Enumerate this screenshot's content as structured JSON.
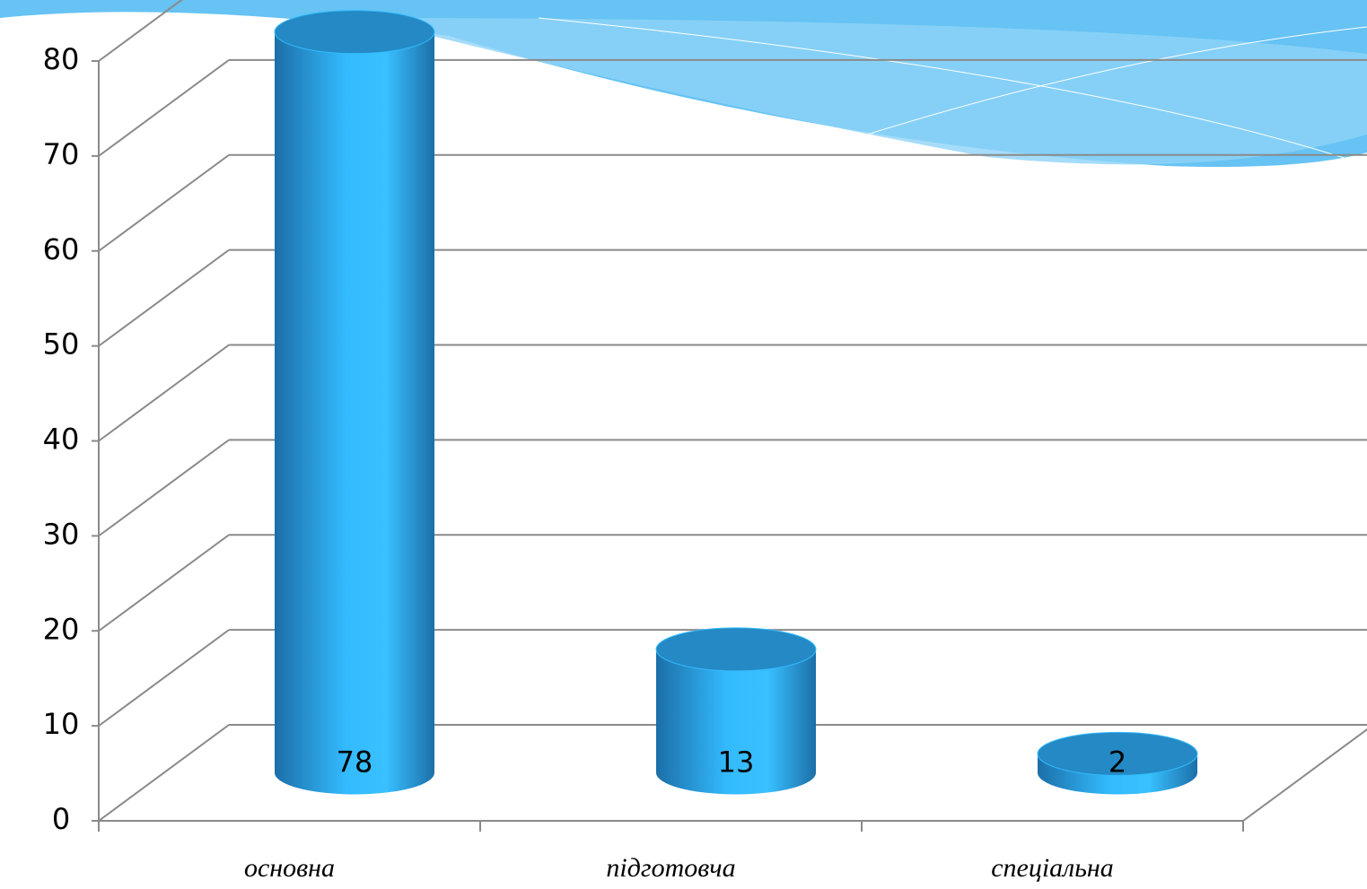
{
  "chart_data": {
    "type": "bar3d",
    "categories": [
      "основна",
      "підготовча",
      "спеціальна"
    ],
    "values": [
      78,
      13,
      2
    ],
    "color": "#33bbff",
    "ylim": [
      0,
      80
    ],
    "yticks": [
      0,
      10,
      20,
      30,
      40,
      50,
      60,
      70,
      80
    ],
    "grid": true
  }
}
